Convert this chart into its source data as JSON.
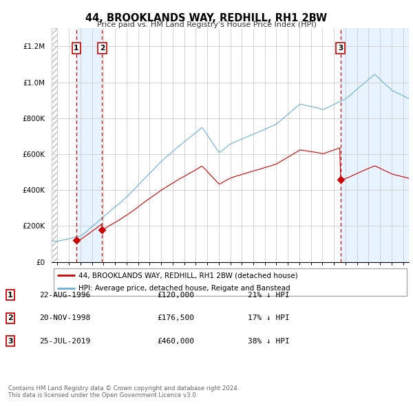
{
  "title": "44, BROOKLANDS WAY, REDHILL, RH1 2BW",
  "subtitle": "Price paid vs. HM Land Registry's House Price Index (HPI)",
  "legend_line1": "44, BROOKLANDS WAY, REDHILL, RH1 2BW (detached house)",
  "legend_line2": "HPI: Average price, detached house, Reigate and Banstead",
  "transactions": [
    {
      "num": 1,
      "date": "22-AUG-1996",
      "price": 120000,
      "hpi_diff": "21% ↓ HPI",
      "year": 1996.64
    },
    {
      "num": 2,
      "date": "20-NOV-1998",
      "price": 176500,
      "hpi_diff": "17% ↓ HPI",
      "year": 1998.89
    },
    {
      "num": 3,
      "date": "25-JUL-2019",
      "price": 460000,
      "hpi_diff": "38% ↓ HPI",
      "year": 2019.56
    }
  ],
  "footer": "Contains HM Land Registry data © Crown copyright and database right 2024.\nThis data is licensed under the Open Government Licence v3.0.",
  "ylim": [
    0,
    1300000
  ],
  "xlim_start": 1994.5,
  "xlim_end": 2025.5,
  "property_color": "#cc0000",
  "hpi_line_color": "#6baed6",
  "marker_color": "#cc0000",
  "vline_color": "#cc0000",
  "grid_color": "#cccccc",
  "shade_color": "#ddeeff",
  "hatch_color": "#cccccc"
}
